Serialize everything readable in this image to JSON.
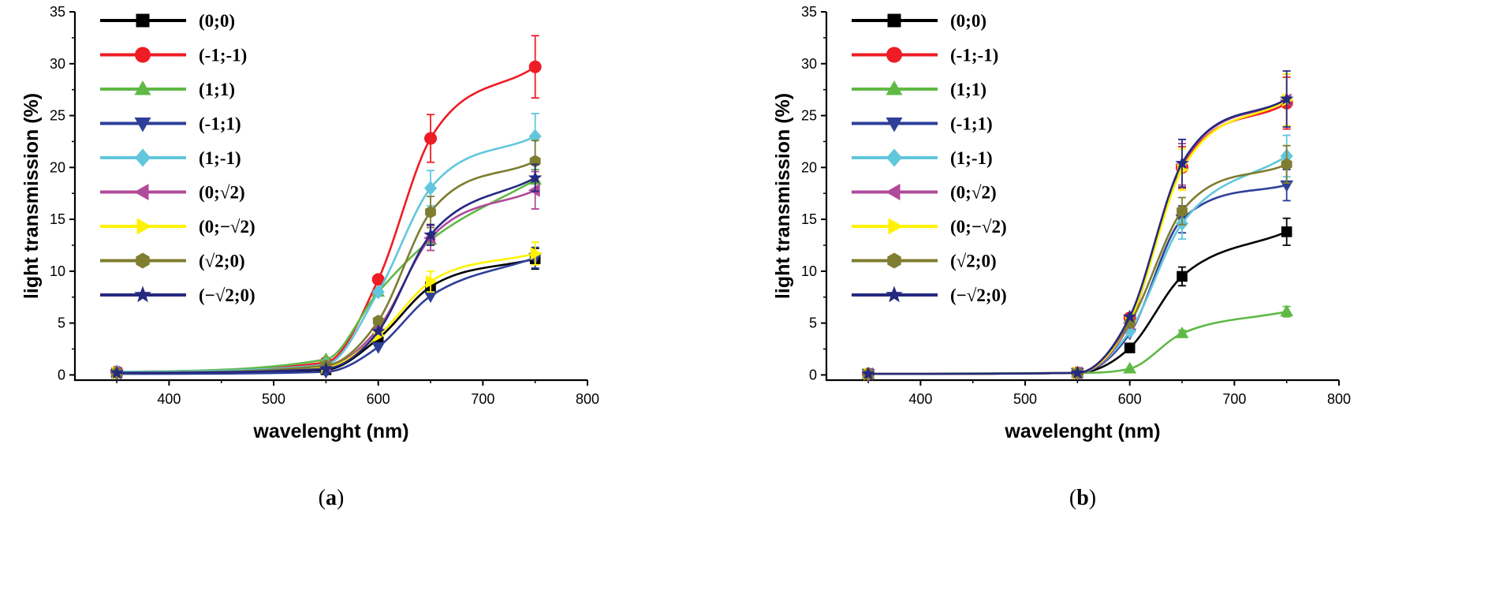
{
  "chart_data": [
    {
      "type": "line",
      "panel_label": "a",
      "title": "",
      "xlabel": "wavelenght (nm)",
      "ylabel": "light transmission (%)",
      "xlim": [
        310,
        800
      ],
      "ylim": [
        -0.5,
        35
      ],
      "xticks": [
        "400",
        "500",
        "600",
        "700",
        "800"
      ],
      "yticks": [
        "0",
        "5",
        "10",
        "15",
        "20",
        "25",
        "30",
        "35"
      ],
      "legend_position": "top-left",
      "x": [
        350,
        550,
        600,
        650,
        750
      ],
      "series": [
        {
          "name": "(0;0)",
          "color": "#000000",
          "marker": "square",
          "values": [
            0.2,
            0.5,
            3.5,
            8.5,
            11.2
          ],
          "errors": [
            0,
            0,
            0,
            0.6,
            1.0
          ]
        },
        {
          "name": "(-1;-1)",
          "color": "#ee1c24",
          "marker": "circle",
          "values": [
            0.3,
            1.2,
            9.2,
            22.8,
            29.7
          ],
          "errors": [
            0,
            0,
            0,
            2.3,
            3.0
          ]
        },
        {
          "name": "(1;1)",
          "color": "#5fb946",
          "marker": "triangle-up",
          "values": [
            0.3,
            1.5,
            8.0,
            13.0,
            18.8
          ],
          "errors": [
            0,
            0,
            0,
            0,
            1.0
          ]
        },
        {
          "name": "(-1;1)",
          "color": "#2e3f98",
          "marker": "triangle-down",
          "values": [
            0.1,
            0.3,
            2.7,
            7.6,
            11.3
          ],
          "errors": [
            0,
            0,
            0,
            0,
            1.0
          ]
        },
        {
          "name": "(1;-1)",
          "color": "#62c6dc",
          "marker": "diamond",
          "values": [
            0.3,
            1.0,
            8.0,
            18.0,
            23.0
          ],
          "errors": [
            0,
            0,
            0,
            1.7,
            2.2
          ]
        },
        {
          "name": "(0;√2)",
          "color": "#b04a9a",
          "marker": "triangle-left",
          "values": [
            0.2,
            0.8,
            4.5,
            13.2,
            17.8
          ],
          "errors": [
            0,
            0,
            0,
            1.2,
            1.8
          ]
        },
        {
          "name": "(0;−√2)",
          "color": "#fff200",
          "marker": "triangle-right",
          "values": [
            0.2,
            0.7,
            3.8,
            9.0,
            11.7
          ],
          "errors": [
            0,
            0,
            0,
            1.0,
            1.1
          ]
        },
        {
          "name": "(√2;0)",
          "color": "#7f7d30",
          "marker": "hexagon",
          "values": [
            0.2,
            0.9,
            5.2,
            15.7,
            20.6
          ],
          "errors": [
            0,
            0,
            0,
            1.5,
            2.0
          ]
        },
        {
          "name": "(−√2;0)",
          "color": "#252980",
          "marker": "star",
          "values": [
            0.2,
            0.6,
            4.2,
            13.5,
            19.0
          ],
          "errors": [
            0,
            0,
            0,
            1.0,
            1.3
          ]
        }
      ]
    },
    {
      "type": "line",
      "panel_label": "b",
      "title": "",
      "xlabel": "wavelenght (nm)",
      "ylabel": "light transmission (%)",
      "xlim": [
        310,
        800
      ],
      "ylim": [
        -0.5,
        35
      ],
      "xticks": [
        "400",
        "500",
        "600",
        "700",
        "800"
      ],
      "yticks": [
        "0",
        "5",
        "10",
        "15",
        "20",
        "25",
        "30",
        "35"
      ],
      "legend_position": "top-left",
      "x": [
        350,
        550,
        600,
        650,
        750
      ],
      "series": [
        {
          "name": "(0;0)",
          "color": "#000000",
          "marker": "square",
          "values": [
            0.1,
            0.2,
            2.6,
            9.5,
            13.8
          ],
          "errors": [
            0,
            0,
            0,
            0.9,
            1.3
          ]
        },
        {
          "name": "(-1;-1)",
          "color": "#ee1c24",
          "marker": "circle",
          "values": [
            0.1,
            0.2,
            5.5,
            20.0,
            26.2
          ],
          "errors": [
            0,
            0,
            0,
            2.0,
            2.5
          ]
        },
        {
          "name": "(1;1)",
          "color": "#5fb946",
          "marker": "triangle-up",
          "values": [
            0.1,
            0.2,
            0.6,
            4.0,
            6.1
          ],
          "errors": [
            0,
            0,
            0,
            0.3,
            0.5
          ]
        },
        {
          "name": "(-1;1)",
          "color": "#2e3f98",
          "marker": "triangle-down",
          "values": [
            0.1,
            0.2,
            4.0,
            15.0,
            18.3
          ],
          "errors": [
            0,
            0,
            0,
            1.3,
            1.5
          ]
        },
        {
          "name": "(1;-1)",
          "color": "#62c6dc",
          "marker": "diamond",
          "values": [
            0.1,
            0.2,
            4.2,
            14.6,
            21.1
          ],
          "errors": [
            0,
            0,
            0,
            1.5,
            2.0
          ]
        },
        {
          "name": "(0;√2)",
          "color": "#b04a9a",
          "marker": "triangle-left",
          "values": [
            0.1,
            0.2,
            5.0,
            20.3,
            26.5
          ],
          "errors": [
            0,
            0,
            0,
            2.0,
            2.5
          ]
        },
        {
          "name": "(0;−√2)",
          "color": "#fff200",
          "marker": "triangle-right",
          "values": [
            0.1,
            0.2,
            5.2,
            19.8,
            26.5
          ],
          "errors": [
            0,
            0,
            0,
            2.0,
            2.5
          ]
        },
        {
          "name": "(√2;0)",
          "color": "#7f7d30",
          "marker": "hexagon",
          "values": [
            0.1,
            0.2,
            5.0,
            15.8,
            20.3
          ],
          "errors": [
            0,
            0,
            0,
            1.3,
            1.8
          ]
        },
        {
          "name": "(−√2;0)",
          "color": "#252980",
          "marker": "star",
          "values": [
            0.1,
            0.2,
            5.6,
            20.4,
            26.6
          ],
          "errors": [
            0,
            0,
            0,
            2.3,
            2.7
          ]
        }
      ]
    }
  ]
}
